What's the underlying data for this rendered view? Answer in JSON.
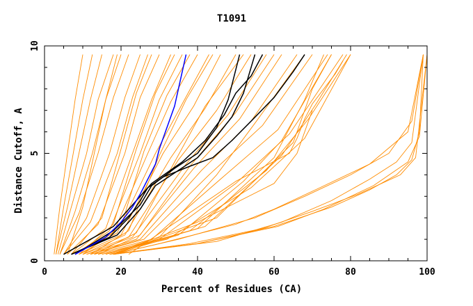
{
  "chart_data": {
    "type": "line",
    "title": "T1091",
    "xlabel": "Percent of Residues (CA)",
    "ylabel": "Distance Cutoff, A",
    "xlim": [
      0,
      100
    ],
    "ylim": [
      0,
      10
    ],
    "xticks": [
      0,
      20,
      40,
      60,
      80,
      100
    ],
    "xtick_labels": [
      "0",
      "20",
      "40",
      "60",
      "80",
      "100"
    ],
    "yticks": [
      0,
      5,
      10
    ],
    "ytick_labels": [
      "0",
      "5",
      "10"
    ],
    "grid": false,
    "colors": {
      "bulk": "#ff8c00",
      "highlight_black": "#000000",
      "highlight_blue": "#0000ff"
    },
    "series": [
      {
        "color": "#ff8c00",
        "x": [
          2.5,
          4,
          6,
          8,
          10
        ],
        "y": [
          0.3,
          2.5,
          5,
          7.5,
          9.6
        ]
      },
      {
        "color": "#ff8c00",
        "x": [
          3,
          5,
          7.5,
          10,
          12.5
        ],
        "y": [
          0.3,
          2.5,
          5,
          7.5,
          9.6
        ]
      },
      {
        "color": "#ff8c00",
        "x": [
          3,
          6,
          9,
          12,
          15
        ],
        "y": [
          0.3,
          2.5,
          5,
          7.5,
          9.6
        ]
      },
      {
        "color": "#ff8c00",
        "x": [
          3.5,
          7,
          11,
          14,
          18
        ],
        "y": [
          0.3,
          2.5,
          5,
          7.5,
          9.6
        ]
      },
      {
        "color": "#ff8c00",
        "x": [
          4,
          8,
          12.5,
          16,
          20
        ],
        "y": [
          0.3,
          2.3,
          5,
          7.5,
          9.6
        ]
      },
      {
        "color": "#ff8c00",
        "x": [
          4,
          9,
          14,
          18,
          22
        ],
        "y": [
          0.3,
          2.2,
          5,
          7.6,
          9.6
        ]
      },
      {
        "color": "#ff8c00",
        "x": [
          5,
          11,
          17,
          21,
          25
        ],
        "y": [
          0.3,
          2,
          5,
          7.6,
          9.6
        ]
      },
      {
        "color": "#ff8c00",
        "x": [
          5,
          12,
          19,
          23,
          27
        ],
        "y": [
          0.3,
          1.8,
          5,
          7.6,
          9.6
        ]
      },
      {
        "color": "#ff8c00",
        "x": [
          6,
          14,
          21,
          25,
          30
        ],
        "y": [
          0.3,
          1.7,
          5,
          7.6,
          9.6
        ]
      },
      {
        "color": "#ff8c00",
        "x": [
          7,
          16,
          23,
          28,
          33
        ],
        "y": [
          0.3,
          1.5,
          5,
          7.5,
          9.6
        ]
      },
      {
        "color": "#ff8c00",
        "x": [
          8,
          17,
          25,
          30,
          36
        ],
        "y": [
          0.3,
          1.4,
          5,
          7.5,
          9.6
        ]
      },
      {
        "color": "#ff8c00",
        "x": [
          8,
          18,
          27,
          33,
          40
        ],
        "y": [
          0.3,
          1.3,
          5,
          7.4,
          9.6
        ]
      },
      {
        "color": "#ff8c00",
        "x": [
          9,
          19,
          29,
          36,
          43
        ],
        "y": [
          0.3,
          1.3,
          5,
          7.3,
          9.6
        ]
      },
      {
        "color": "#ff8c00",
        "x": [
          9,
          20,
          31,
          39,
          46
        ],
        "y": [
          0.3,
          1.2,
          5,
          7.2,
          9.6
        ]
      },
      {
        "color": "#ff8c00",
        "x": [
          10,
          21,
          33,
          42,
          50
        ],
        "y": [
          0.3,
          1.2,
          4.8,
          7.1,
          9.6
        ]
      },
      {
        "color": "#ff8c00",
        "x": [
          10,
          22,
          35,
          45,
          54
        ],
        "y": [
          0.3,
          1.1,
          4.7,
          7,
          9.6
        ]
      },
      {
        "color": "#ff8c00",
        "x": [
          11,
          23,
          37,
          48,
          58
        ],
        "y": [
          0.3,
          1.1,
          4.5,
          6.8,
          9.6
        ]
      },
      {
        "color": "#ff8c00",
        "x": [
          11,
          24,
          39,
          51,
          62
        ],
        "y": [
          0.3,
          1,
          4.3,
          6.6,
          9.6
        ]
      },
      {
        "color": "#ff8c00",
        "x": [
          12,
          25,
          41,
          54,
          66
        ],
        "y": [
          0.3,
          1,
          4.2,
          6.5,
          9.6
        ]
      },
      {
        "color": "#ff8c00",
        "x": [
          12,
          26,
          43,
          57,
          70
        ],
        "y": [
          0.3,
          1,
          4,
          6.3,
          9.6
        ]
      },
      {
        "color": "#ff8c00",
        "x": [
          13,
          28,
          46,
          61,
          74
        ],
        "y": [
          0.3,
          1,
          3.8,
          6.1,
          9.6
        ]
      },
      {
        "color": "#ff8c00",
        "x": [
          14,
          30,
          50,
          64,
          78
        ],
        "y": [
          0.3,
          1,
          3.6,
          5.9,
          9.6
        ]
      },
      {
        "color": "#ff8c00",
        "x": [
          15,
          32,
          54,
          68,
          80
        ],
        "y": [
          0.3,
          1,
          3.4,
          5.7,
          9.6
        ]
      },
      {
        "color": "#ff8c00",
        "x": [
          6,
          10,
          13,
          16,
          19
        ],
        "y": [
          0.3,
          2.5,
          5,
          7.5,
          9.6
        ]
      },
      {
        "color": "#ff8c00",
        "x": [
          7,
          15,
          20,
          24,
          28
        ],
        "y": [
          0.3,
          2,
          5.2,
          7.8,
          9.6
        ]
      },
      {
        "color": "#ff8c00",
        "x": [
          9,
          18,
          24,
          29,
          34
        ],
        "y": [
          0.3,
          1.7,
          5.2,
          7.8,
          9.6
        ]
      },
      {
        "color": "#ff8c00",
        "x": [
          10,
          20,
          26,
          32,
          38
        ],
        "y": [
          0.3,
          1.6,
          5.1,
          7.7,
          9.6
        ]
      },
      {
        "color": "#ff8c00",
        "x": [
          12,
          22,
          30,
          37,
          44
        ],
        "y": [
          0.3,
          1.4,
          4.9,
          7.5,
          9.6
        ]
      },
      {
        "color": "#ff8c00",
        "x": [
          13,
          24,
          34,
          42,
          52
        ],
        "y": [
          0.3,
          1.3,
          4.6,
          7.2,
          9.6
        ]
      },
      {
        "color": "#ff8c00",
        "x": [
          14,
          25,
          38,
          50,
          60
        ],
        "y": [
          0.3,
          1.2,
          4.4,
          6.9,
          9.6
        ]
      },
      {
        "color": "#ff8c00",
        "x": [
          18,
          35,
          52,
          62,
          75
        ],
        "y": [
          0.3,
          1.2,
          3.7,
          5.6,
          9.6
        ]
      },
      {
        "color": "#ff8c00",
        "x": [
          16,
          30,
          45,
          55,
          68
        ],
        "y": [
          0.3,
          1.1,
          4,
          6.4,
          9.6
        ]
      },
      {
        "color": "#ff8c00",
        "x": [
          17,
          40,
          60,
          68,
          73
        ],
        "y": [
          0.3,
          1.5,
          4.8,
          7.5,
          9.6
        ]
      },
      {
        "color": "#ff8c00",
        "x": [
          18,
          45,
          65,
          70,
          75
        ],
        "y": [
          0.3,
          2,
          5.5,
          8,
          9.6
        ]
      },
      {
        "color": "#ff8c00",
        "x": [
          17,
          42,
          62,
          71,
          79
        ],
        "y": [
          0.3,
          1.6,
          4.9,
          7.3,
          9.6
        ]
      },
      {
        "color": "#ff8c00",
        "x": [
          16,
          38,
          58,
          69,
          80
        ],
        "y": [
          0.3,
          1.4,
          4.2,
          6.6,
          9.6
        ]
      },
      {
        "color": "#ff8c00",
        "x": [
          18,
          40,
          60,
          66,
          70
        ],
        "y": [
          0.3,
          1.8,
          3.6,
          5,
          7
        ]
      },
      {
        "color": "#ff8c00",
        "x": [
          22,
          50,
          64,
          66,
          68,
          70,
          73,
          76,
          78
        ],
        "y": [
          0.3,
          3.7,
          5,
          5.7,
          6.6,
          7.3,
          8,
          8.7,
          9.3
        ]
      },
      {
        "color": "#ff8c00",
        "x": [
          17,
          40,
          60,
          75,
          85,
          92,
          96,
          98,
          99
        ],
        "y": [
          0.3,
          0.8,
          1.6,
          2.5,
          3.3,
          4,
          4.7,
          6,
          9.6
        ]
      },
      {
        "color": "#ff8c00",
        "x": [
          18,
          45,
          62,
          75,
          85,
          92,
          96,
          99
        ],
        "y": [
          0.3,
          0.9,
          1.8,
          2.8,
          3.8,
          4.6,
          5.5,
          9.6
        ]
      },
      {
        "color": "#ff8c00",
        "x": [
          18,
          35,
          55,
          68,
          80,
          90,
          96,
          99
        ],
        "y": [
          0.3,
          1,
          2,
          3,
          4,
          5,
          6.5,
          9.6
        ]
      },
      {
        "color": "#ff8c00",
        "x": [
          18,
          30,
          50,
          60,
          72,
          85,
          95,
          99
        ],
        "y": [
          0.3,
          0.8,
          1.7,
          2.4,
          3.4,
          4.5,
          6,
          9.6
        ]
      },
      {
        "color": "#ff8c00",
        "x": [
          18,
          38,
          57,
          70,
          82,
          93,
          97,
          100
        ],
        "y": [
          0.3,
          0.8,
          1.5,
          2.3,
          3.1,
          4,
          4.8,
          9.6
        ]
      },
      {
        "color": "#ff8c00",
        "x": [
          18,
          40,
          61,
          73,
          86,
          95,
          98,
          100
        ],
        "y": [
          0.3,
          0.8,
          1.6,
          2.4,
          3.5,
          4.6,
          5.8,
          9.6
        ]
      },
      {
        "color": "#000000",
        "x": [
          5,
          18,
          24,
          28,
          36,
          42,
          47,
          50,
          54,
          57
        ],
        "y": [
          0.3,
          1.6,
          2.8,
          3.6,
          4.6,
          5.6,
          6.8,
          7.8,
          8.6,
          9.6
        ]
      },
      {
        "color": "#000000",
        "x": [
          7,
          19,
          25,
          29,
          40,
          45,
          49,
          52,
          55
        ],
        "y": [
          0.3,
          1.2,
          2.4,
          3.5,
          4.8,
          5.8,
          6.7,
          7.8,
          9.6
        ]
      },
      {
        "color": "#000000",
        "x": [
          8,
          18,
          25,
          28,
          34,
          40,
          45,
          48,
          51
        ],
        "y": [
          0.3,
          1.4,
          2.6,
          3.5,
          4.3,
          5,
          6.2,
          7.5,
          9.6
        ]
      },
      {
        "color": "#000000",
        "x": [
          7,
          17,
          22,
          25,
          27,
          31,
          38,
          44,
          49,
          54,
          60,
          65,
          68
        ],
        "y": [
          0.3,
          1.1,
          2,
          2.8,
          3.4,
          3.9,
          4.4,
          4.8,
          5.6,
          6.5,
          7.6,
          8.8,
          9.6
        ]
      },
      {
        "color": "#0000ff",
        "x": [
          8,
          16,
          20,
          23,
          25,
          27,
          29,
          30,
          32,
          34,
          35,
          36,
          37
        ],
        "y": [
          0.3,
          1.1,
          1.8,
          2.5,
          3.1,
          3.8,
          4.5,
          5.2,
          6.2,
          7.2,
          8,
          8.8,
          9.6
        ]
      }
    ]
  }
}
